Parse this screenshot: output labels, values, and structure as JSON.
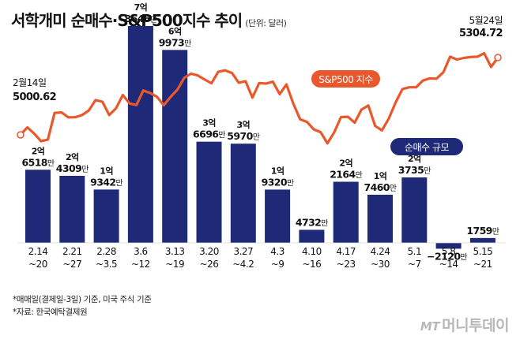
{
  "title": "서학개미 순매수·S&P500지수 추이",
  "unit": "(단위: 달러)",
  "notes": [
    "*매매일(결제일-3일) 기준, 미국 주식 기준",
    "*자료: 한국예탁결제원"
  ],
  "logo": "머니투데이",
  "colors": {
    "bar": "#1e2a78",
    "line": "#e8582c",
    "legend_line": "#e8582c",
    "legend_bar": "#1e2a78"
  },
  "chart_data": {
    "type": "bar+line",
    "bar_series": {
      "name": "순매수 규모",
      "categories": [
        "2.14\n~20",
        "2.21\n~27",
        "2.28\n~3.5",
        "3.6\n~12",
        "3.13\n~19",
        "3.20\n~26",
        "3.27\n~4.2",
        "4.3\n~9",
        "4.10\n~16",
        "4.17\n~23",
        "4.24\n~30",
        "5.1\n~7",
        "5.8\n~14",
        "5.15\n~21"
      ],
      "values": [
        265180000,
        243090000,
        193420000,
        786460000,
        699730000,
        366960000,
        359700000,
        193200000,
        47320000,
        221640000,
        174600000,
        237350000,
        -21200000,
        17590000
      ],
      "labels": [
        {
          "hi": "2억",
          "lo": "6518",
          "u": "만"
        },
        {
          "hi": "2억",
          "lo": "4309",
          "u": "만"
        },
        {
          "hi": "1억",
          "lo": "9342",
          "u": "만"
        },
        {
          "hi": "7억",
          "lo": "8646",
          "u": "만"
        },
        {
          "hi": "6억",
          "lo": "9973",
          "u": "만"
        },
        {
          "hi": "3억",
          "lo": "6696",
          "u": "만"
        },
        {
          "hi": "3억",
          "lo": "5970",
          "u": "만"
        },
        {
          "hi": "1억",
          "lo": "9320",
          "u": "만"
        },
        {
          "hi": "",
          "lo": "4732",
          "u": "만"
        },
        {
          "hi": "2억",
          "lo": "2164",
          "u": "만"
        },
        {
          "hi": "1억",
          "lo": "7460",
          "u": "만"
        },
        {
          "hi": "2억",
          "lo": "3735",
          "u": "만"
        },
        {
          "hi": "",
          "lo": "-2120",
          "u": "만"
        },
        {
          "hi": "",
          "lo": "1759",
          "u": "만"
        }
      ]
    },
    "line_series": {
      "name": "S&P500 지수",
      "start": {
        "date": "2월14일",
        "value": 5000.62
      },
      "end": {
        "date": "5월24일",
        "value": 5304.72
      },
      "values": [
        5000.62,
        5029.73,
        5005.57,
        4975.51,
        4981.8,
        5087.03,
        5088.8,
        5069.53,
        5069.76,
        5078.18,
        5096.27,
        5137.08,
        5130.95,
        5078.65,
        5104.76,
        5157.36,
        5123.69,
        5117.94,
        5175.27,
        5165.31,
        5150.48,
        5117.09,
        5149.42,
        5178.51,
        5224.62,
        5241.53,
        5234.18,
        5218.19,
        5203.58,
        5248.49,
        5254.35,
        5243.77,
        5205.81,
        5211.49,
        5147.21,
        5204.34,
        5202.39,
        5209.91,
        5160.64,
        5199.06,
        5123.41,
        5061.82,
        5051.41,
        5022.21,
        5011.12,
        4967.23,
        5010.6,
        5070.55,
        5071.63,
        5048.42,
        5099.96,
        5116.17,
        5035.69,
        5018.39,
        5064.2,
        5127.79,
        5180.74,
        5187.7,
        5187.67,
        5214.08,
        5222.68,
        5221.42,
        5246.68,
        5308.15,
        5297.1,
        5303.27,
        5307.01,
        5308.13,
        5321.41,
        5267.84,
        5304.72
      ]
    },
    "xlabel": "",
    "ylabel": ""
  }
}
